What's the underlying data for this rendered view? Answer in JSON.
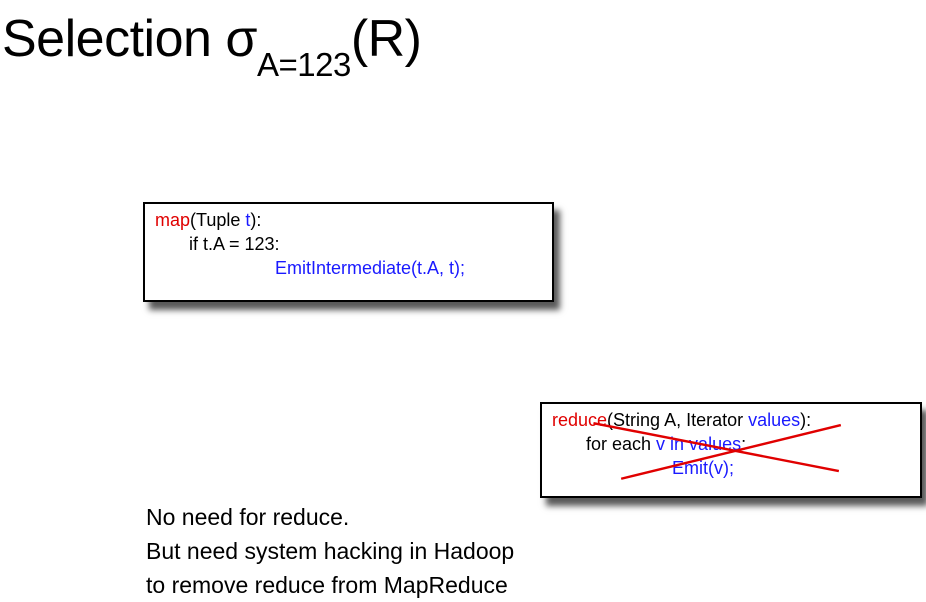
{
  "title": {
    "main": "Selection σ",
    "subscript": "A=123",
    "suffix": "(R)"
  },
  "map_box": {
    "l1_kw": "map",
    "l1_a": "(Tuple ",
    "l1_t": "t",
    "l1_b": "):",
    "l2": "if  t.A = 123:",
    "l3": "EmitIntermediate(t.A, t);"
  },
  "reduce_box": {
    "l1_kw": "reduce",
    "l1_a": "(String A, Iterator ",
    "l1_values": "values",
    "l1_b": "):",
    "l2_a": "for each ",
    "l2_v": "v in values",
    "l2_b": ":",
    "l3": "Emit(v);"
  },
  "notes": [
    "No need for reduce.",
    "But need system hacking in Hadoop",
    "to remove reduce from MapReduce"
  ],
  "colors": {
    "keyword": "#e00000",
    "code_blue": "#1a1aff",
    "strike": "#e00000"
  }
}
